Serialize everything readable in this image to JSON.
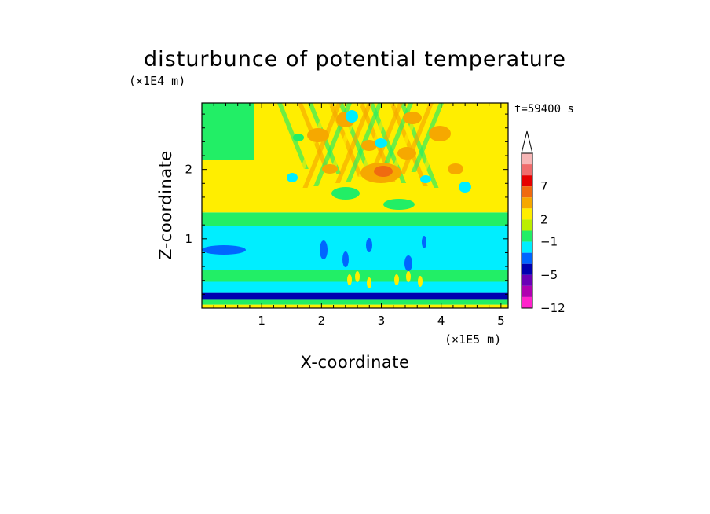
{
  "chart_data": {
    "type": "heatmap",
    "title": "disturbunce of potential temperature",
    "xlabel": "X-coordinate",
    "ylabel": "Z-coordinate",
    "x_unit": "(×1E5 m)",
    "y_unit": "(×1E4 m)",
    "time_label": "t=59400 s",
    "xlim": [
      0,
      5.12
    ],
    "ylim": [
      0,
      2.96
    ],
    "x_ticks": [
      1,
      2,
      3,
      4,
      5
    ],
    "x_tick_labels": [
      "1",
      "2",
      "3",
      "4",
      "5"
    ],
    "y_ticks": [
      1,
      2
    ],
    "y_tick_labels": [
      "1",
      "2"
    ],
    "colorbar": {
      "colors_top_to_bottom": [
        "#ffffff",
        "#f7b6b6",
        "#f06c6c",
        "#e60000",
        "#f06a10",
        "#f6a800",
        "#ffee00",
        "#bbee00",
        "#22ee66",
        "#00eeff",
        "#0066ff",
        "#0000b0",
        "#6a00b6",
        "#b000b0",
        "#ff22cc"
      ],
      "tick_labels": [
        "7",
        "2",
        "−1",
        "−5",
        "−12"
      ]
    },
    "bands": [
      {
        "z": [
          0.0,
          0.05
        ],
        "color": "#ffee00"
      },
      {
        "z": [
          0.05,
          0.12
        ],
        "color": "#22ee66"
      },
      {
        "z": [
          0.12,
          0.22
        ],
        "color": "#0000b0"
      },
      {
        "z": [
          0.22,
          0.38
        ],
        "color": "#00eeff"
      },
      {
        "z": [
          0.38,
          0.55
        ],
        "color": "#22ee66"
      },
      {
        "z": [
          0.55,
          1.18
        ],
        "color": "#00eeff"
      },
      {
        "z": [
          1.18,
          1.38
        ],
        "color": "#22ee66"
      },
      {
        "z": [
          1.38,
          2.96
        ],
        "color": "#ffee00"
      }
    ]
  }
}
